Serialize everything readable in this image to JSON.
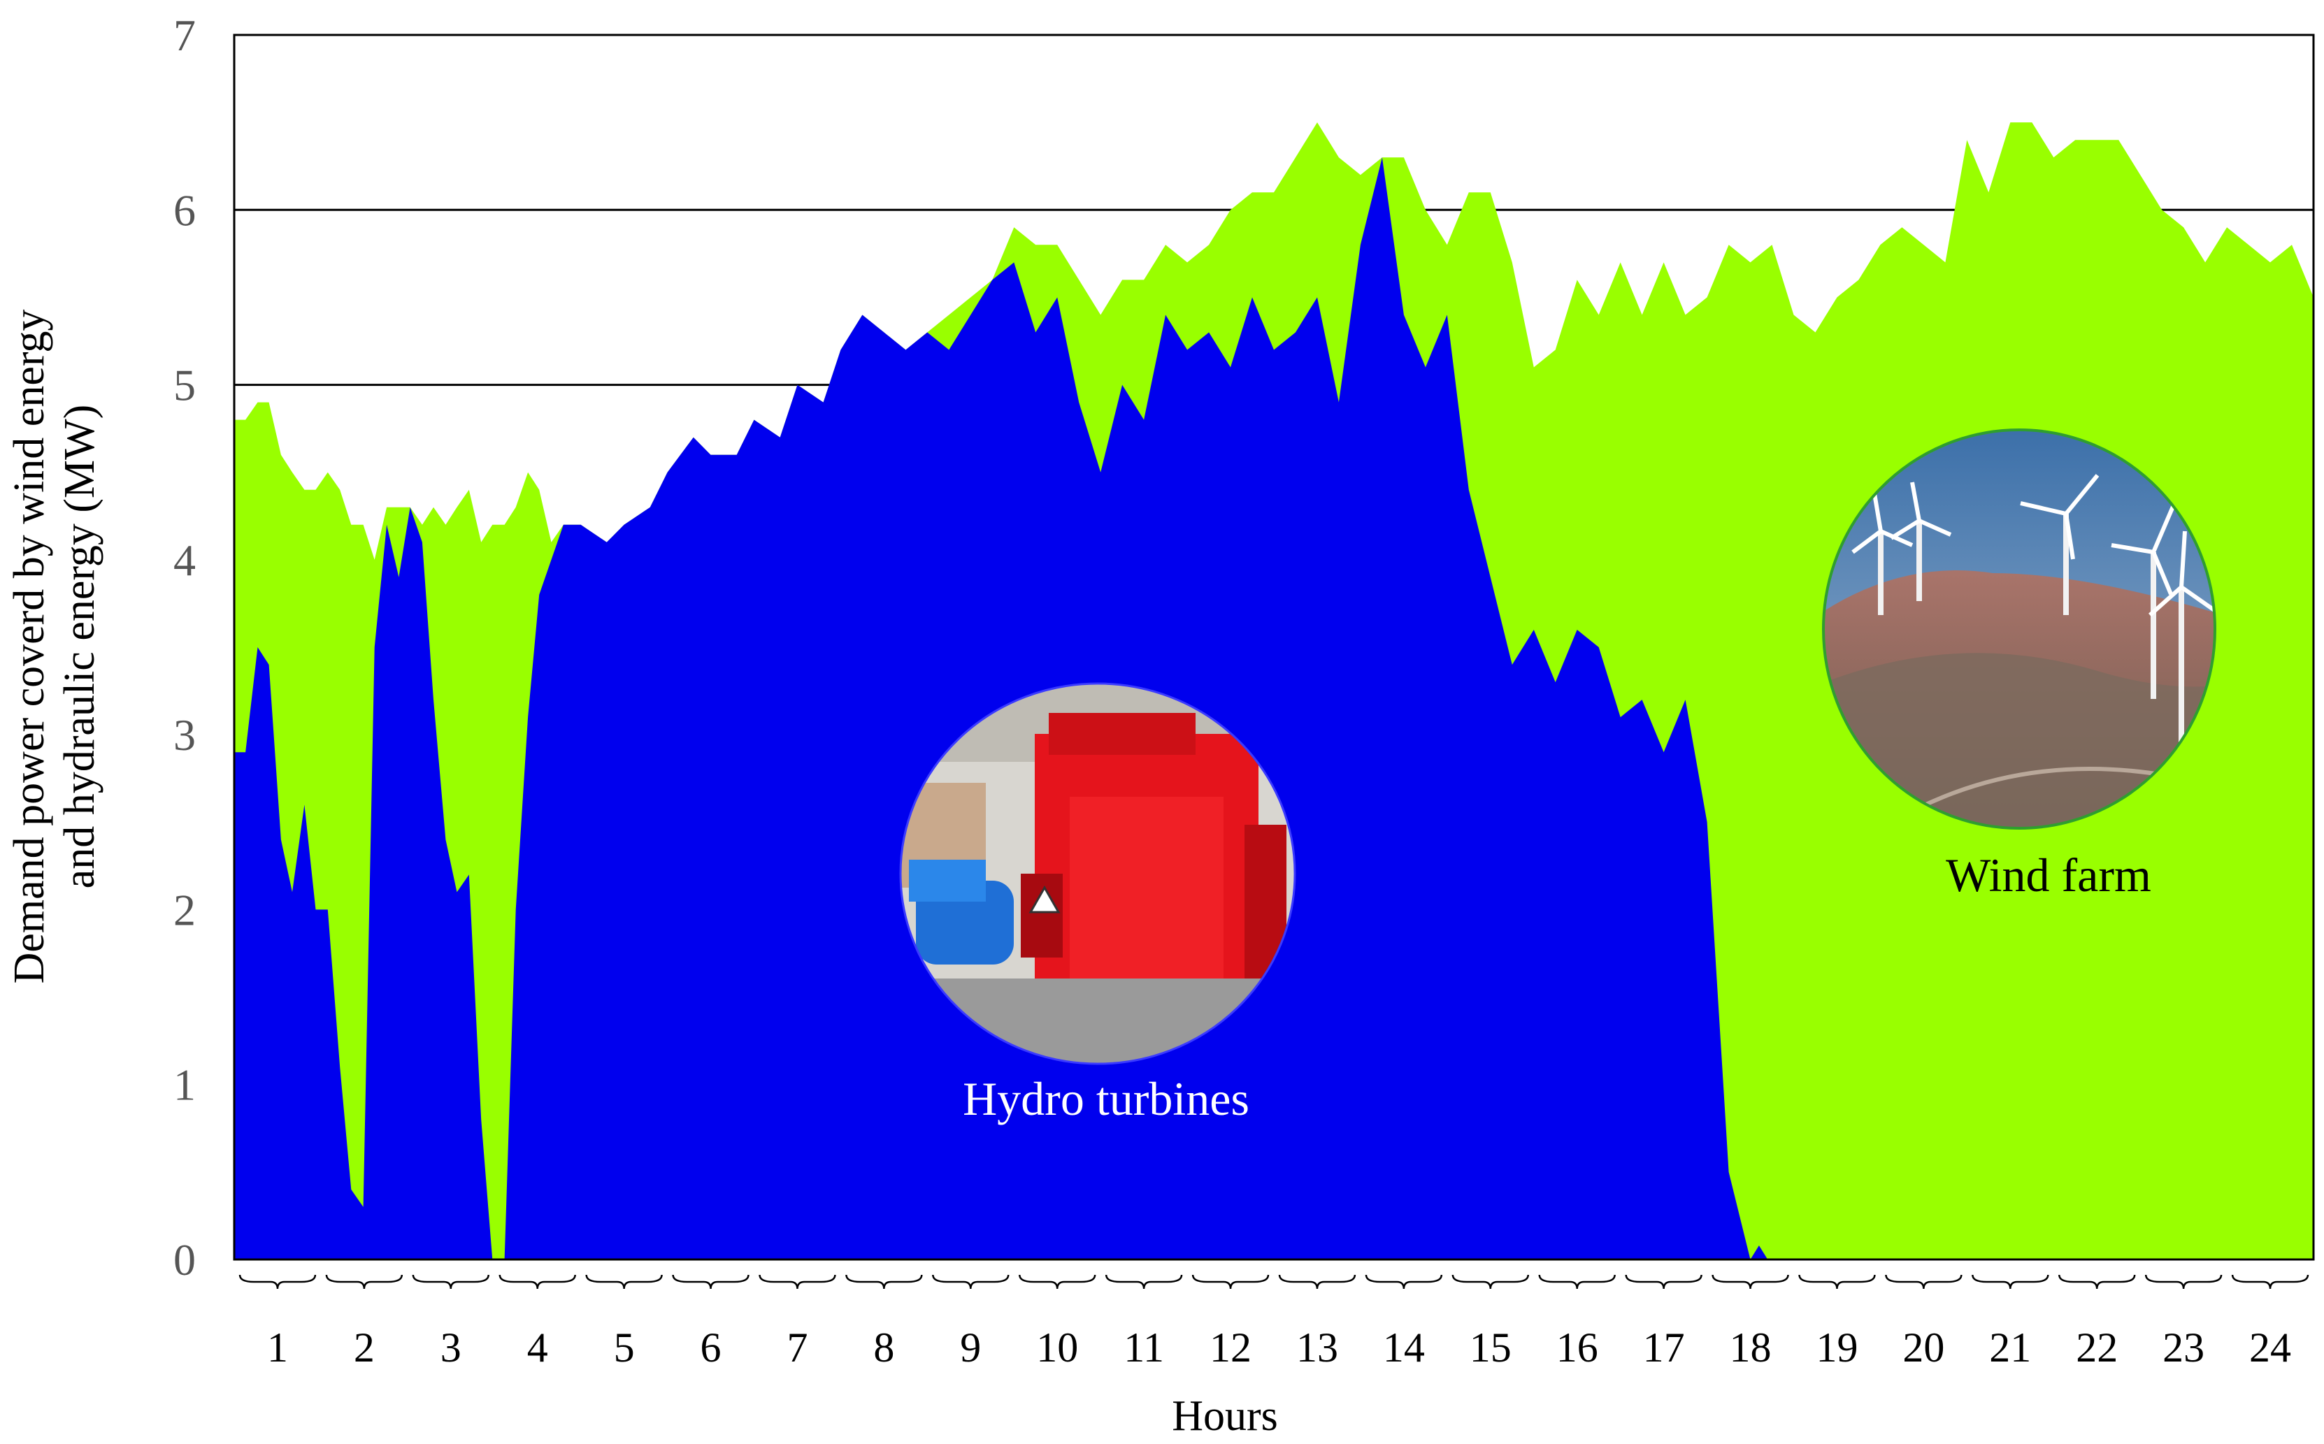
{
  "chart_data": {
    "type": "area",
    "stacked": false,
    "title": "",
    "xlabel": "Hours",
    "ylabel_lines": [
      "Demand power coverd  by wind energy",
      "and hydraulic energy (MW)"
    ],
    "ylim": [
      0,
      7
    ],
    "yticks": [
      0,
      1,
      2,
      3,
      4,
      5,
      6,
      7
    ],
    "gridlines_y": [
      5,
      6
    ],
    "xlim": [
      0.5,
      24.5
    ],
    "hour_labels": [
      "1",
      "2",
      "3",
      "4",
      "5",
      "6",
      "7",
      "8",
      "9",
      "10",
      "11",
      "12",
      "13",
      "14",
      "15",
      "16",
      "17",
      "18",
      "19",
      "20",
      "21",
      "22",
      "23",
      "24"
    ],
    "legend": "none",
    "series": [
      {
        "key": "total",
        "color": "#99ff00",
        "points": [
          [
            0.5,
            4.8
          ],
          [
            0.63,
            4.8
          ],
          [
            0.77,
            4.9
          ],
          [
            0.9,
            4.9
          ],
          [
            1.04,
            4.6
          ],
          [
            1.17,
            4.5
          ],
          [
            1.31,
            4.4
          ],
          [
            1.44,
            4.4
          ],
          [
            1.58,
            4.5
          ],
          [
            1.72,
            4.4
          ],
          [
            1.85,
            4.2
          ],
          [
            1.99,
            4.2
          ],
          [
            2.12,
            4.0
          ],
          [
            2.26,
            4.3
          ],
          [
            2.4,
            4.3
          ],
          [
            2.53,
            4.3
          ],
          [
            2.67,
            4.2
          ],
          [
            2.8,
            4.3
          ],
          [
            2.94,
            4.2
          ],
          [
            3.07,
            4.3
          ],
          [
            3.21,
            4.4
          ],
          [
            3.35,
            4.1
          ],
          [
            3.48,
            4.2
          ],
          [
            3.62,
            4.2
          ],
          [
            3.75,
            4.3
          ],
          [
            3.89,
            4.5
          ],
          [
            4.02,
            4.4
          ],
          [
            4.16,
            4.1
          ],
          [
            4.3,
            4.2
          ],
          [
            4.5,
            4.2
          ],
          [
            4.8,
            4.1
          ],
          [
            5.0,
            4.2
          ],
          [
            5.3,
            4.3
          ],
          [
            5.5,
            4.5
          ],
          [
            5.8,
            4.7
          ],
          [
            6.0,
            4.6
          ],
          [
            6.3,
            4.6
          ],
          [
            6.5,
            4.8
          ],
          [
            6.8,
            4.7
          ],
          [
            7.0,
            5.0
          ],
          [
            7.3,
            4.9
          ],
          [
            7.5,
            5.2
          ],
          [
            7.75,
            5.4
          ],
          [
            8.0,
            5.3
          ],
          [
            8.25,
            5.2
          ],
          [
            8.5,
            5.3
          ],
          [
            8.75,
            5.4
          ],
          [
            9.0,
            5.5
          ],
          [
            9.25,
            5.6
          ],
          [
            9.5,
            5.9
          ],
          [
            9.75,
            5.8
          ],
          [
            10.0,
            5.8
          ],
          [
            10.25,
            5.6
          ],
          [
            10.5,
            5.4
          ],
          [
            10.75,
            5.6
          ],
          [
            11.0,
            5.6
          ],
          [
            11.25,
            5.8
          ],
          [
            11.5,
            5.7
          ],
          [
            11.75,
            5.8
          ],
          [
            12.0,
            6.0
          ],
          [
            12.25,
            6.1
          ],
          [
            12.5,
            6.1
          ],
          [
            12.75,
            6.3
          ],
          [
            13.0,
            6.5
          ],
          [
            13.25,
            6.3
          ],
          [
            13.5,
            6.2
          ],
          [
            13.75,
            6.3
          ],
          [
            14.0,
            6.3
          ],
          [
            14.25,
            6.0
          ],
          [
            14.5,
            5.8
          ],
          [
            14.75,
            6.1
          ],
          [
            15.0,
            6.1
          ],
          [
            15.25,
            5.7
          ],
          [
            15.5,
            5.1
          ],
          [
            15.75,
            5.2
          ],
          [
            16.0,
            5.6
          ],
          [
            16.25,
            5.4
          ],
          [
            16.5,
            5.7
          ],
          [
            16.75,
            5.4
          ],
          [
            17.0,
            5.7
          ],
          [
            17.25,
            5.4
          ],
          [
            17.5,
            5.5
          ],
          [
            17.75,
            5.8
          ],
          [
            18.0,
            5.7
          ],
          [
            18.25,
            5.8
          ],
          [
            18.5,
            5.4
          ],
          [
            18.75,
            5.3
          ],
          [
            19.0,
            5.5
          ],
          [
            19.25,
            5.6
          ],
          [
            19.5,
            5.8
          ],
          [
            19.75,
            5.9
          ],
          [
            20.0,
            5.8
          ],
          [
            20.25,
            5.7
          ],
          [
            20.5,
            6.4
          ],
          [
            20.75,
            6.1
          ],
          [
            21.0,
            6.5
          ],
          [
            21.25,
            6.5
          ],
          [
            21.5,
            6.3
          ],
          [
            21.75,
            6.4
          ],
          [
            22.0,
            6.4
          ],
          [
            22.25,
            6.4
          ],
          [
            22.5,
            6.2
          ],
          [
            22.75,
            6.0
          ],
          [
            23.0,
            5.9
          ],
          [
            23.25,
            5.7
          ],
          [
            23.5,
            5.9
          ],
          [
            23.75,
            5.8
          ],
          [
            24.0,
            5.7
          ],
          [
            24.25,
            5.8
          ],
          [
            24.5,
            5.5
          ]
        ]
      },
      {
        "key": "hydraulic",
        "color": "#0000ee",
        "points": [
          [
            0.5,
            2.9
          ],
          [
            0.63,
            2.9
          ],
          [
            0.77,
            3.5
          ],
          [
            0.9,
            3.4
          ],
          [
            1.04,
            2.4
          ],
          [
            1.17,
            2.1
          ],
          [
            1.31,
            2.6
          ],
          [
            1.44,
            2.0
          ],
          [
            1.58,
            2.0
          ],
          [
            1.72,
            1.1
          ],
          [
            1.85,
            0.4
          ],
          [
            1.99,
            0.3
          ],
          [
            2.12,
            3.5
          ],
          [
            2.26,
            4.2
          ],
          [
            2.4,
            3.9
          ],
          [
            2.53,
            4.3
          ],
          [
            2.67,
            4.1
          ],
          [
            2.8,
            3.2
          ],
          [
            2.94,
            2.4
          ],
          [
            3.07,
            2.1
          ],
          [
            3.21,
            2.2
          ],
          [
            3.35,
            0.8
          ],
          [
            3.48,
            0.0
          ],
          [
            3.62,
            0.0
          ],
          [
            3.75,
            2.0
          ],
          [
            3.89,
            3.1
          ],
          [
            4.02,
            3.8
          ],
          [
            4.16,
            4.0
          ],
          [
            4.3,
            4.2
          ],
          [
            4.5,
            4.2
          ],
          [
            4.8,
            4.1
          ],
          [
            5.0,
            4.2
          ],
          [
            5.3,
            4.3
          ],
          [
            5.5,
            4.5
          ],
          [
            5.8,
            4.7
          ],
          [
            6.0,
            4.6
          ],
          [
            6.3,
            4.6
          ],
          [
            6.5,
            4.8
          ],
          [
            6.8,
            4.7
          ],
          [
            7.0,
            5.0
          ],
          [
            7.3,
            4.9
          ],
          [
            7.5,
            5.2
          ],
          [
            7.75,
            5.4
          ],
          [
            8.0,
            5.3
          ],
          [
            8.25,
            5.2
          ],
          [
            8.5,
            5.3
          ],
          [
            8.75,
            5.2
          ],
          [
            9.0,
            5.4
          ],
          [
            9.25,
            5.6
          ],
          [
            9.5,
            5.7
          ],
          [
            9.75,
            5.3
          ],
          [
            10.0,
            5.5
          ],
          [
            10.25,
            4.9
          ],
          [
            10.5,
            4.5
          ],
          [
            10.75,
            5.0
          ],
          [
            11.0,
            4.8
          ],
          [
            11.25,
            5.4
          ],
          [
            11.5,
            5.2
          ],
          [
            11.75,
            5.3
          ],
          [
            12.0,
            5.1
          ],
          [
            12.25,
            5.5
          ],
          [
            12.5,
            5.2
          ],
          [
            12.75,
            5.3
          ],
          [
            13.0,
            5.5
          ],
          [
            13.25,
            4.9
          ],
          [
            13.5,
            5.8
          ],
          [
            13.75,
            6.3
          ],
          [
            14.0,
            5.4
          ],
          [
            14.25,
            5.1
          ],
          [
            14.5,
            5.4
          ],
          [
            14.75,
            4.4
          ],
          [
            15.0,
            3.9
          ],
          [
            15.25,
            3.4
          ],
          [
            15.5,
            3.6
          ],
          [
            15.75,
            3.3
          ],
          [
            16.0,
            3.6
          ],
          [
            16.25,
            3.5
          ],
          [
            16.5,
            3.1
          ],
          [
            16.75,
            3.2
          ],
          [
            17.0,
            2.9
          ],
          [
            17.25,
            3.2
          ],
          [
            17.5,
            2.5
          ],
          [
            17.75,
            0.5
          ],
          [
            18.0,
            0.0
          ],
          [
            18.1,
            0.08
          ],
          [
            18.2,
            0.0
          ],
          [
            24.5,
            0.0
          ]
        ]
      }
    ],
    "annotations": [
      {
        "key": "hydro",
        "text": "Hydro turbines",
        "color": "#ffffff"
      },
      {
        "key": "wind",
        "text": "Wind farm",
        "color": "#000000"
      }
    ]
  },
  "photos": [
    {
      "key": "hydro-photo",
      "icon": "hydro-turbine-photo"
    },
    {
      "key": "wind-photo",
      "icon": "wind-farm-photo"
    }
  ]
}
